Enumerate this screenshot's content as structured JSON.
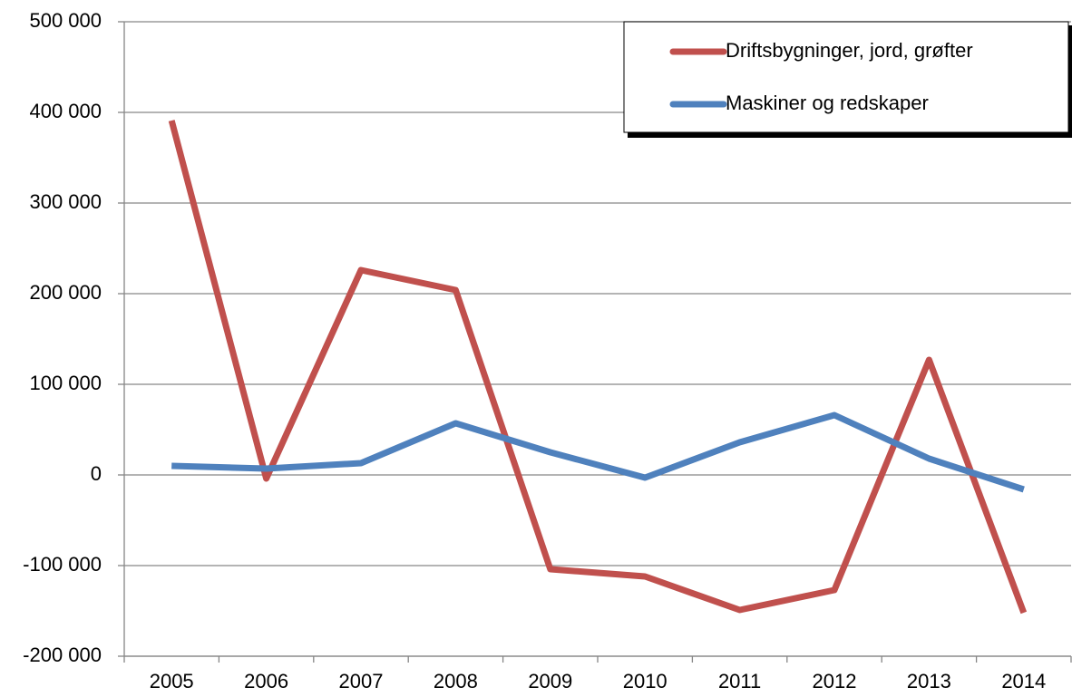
{
  "chart_data": {
    "type": "line",
    "categories": [
      "2005",
      "2006",
      "2007",
      "2008",
      "2009",
      "2010",
      "2011",
      "2012",
      "2013",
      "2014"
    ],
    "series": [
      {
        "name": "Driftsbygninger, jord, grøfter",
        "color": "#c0504d",
        "values": [
          391000,
          -4000,
          226000,
          204000,
          -104000,
          -112000,
          -149000,
          -127000,
          127000,
          -152000
        ]
      },
      {
        "name": "Maskiner og redskaper",
        "color": "#4f81bd",
        "values": [
          10000,
          7000,
          13000,
          57000,
          25000,
          -3000,
          36000,
          66000,
          18000,
          -16000
        ]
      }
    ],
    "ylim": [
      -200000,
      500000
    ],
    "yticks": [
      {
        "value": -200000,
        "label": "-200 000"
      },
      {
        "value": -100000,
        "label": "-100 000"
      },
      0,
      {
        "value": 100000,
        "label": "100 000"
      },
      {
        "value": 200000,
        "label": "200 000"
      },
      {
        "value": 300000,
        "label": "300 000"
      },
      {
        "value": 400000,
        "label": "400 000"
      },
      {
        "value": 500000,
        "label": "500 000"
      }
    ],
    "grid": true,
    "legend": "top-right"
  }
}
